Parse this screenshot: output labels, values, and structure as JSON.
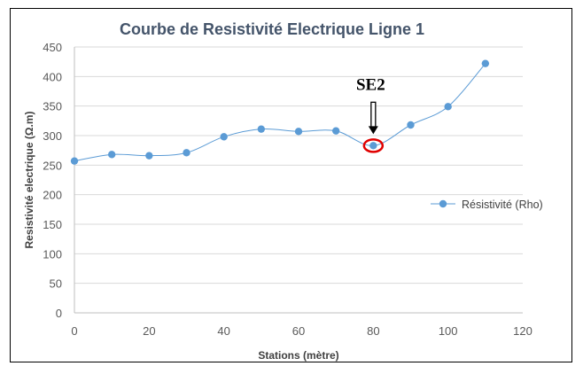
{
  "chart_data": {
    "type": "line",
    "title": "Courbe de Resistivité Electrique Ligne 1",
    "xlabel": "Stations (mètre)",
    "ylabel": "Resistivité electrique (Ω.m)",
    "xlim": [
      0,
      120
    ],
    "ylim": [
      0,
      450
    ],
    "x_ticks": [
      0,
      20,
      40,
      60,
      80,
      100,
      120
    ],
    "y_ticks": [
      0,
      50,
      100,
      150,
      200,
      250,
      300,
      350,
      400,
      450
    ],
    "grid": "horizontal",
    "legend_position": "right",
    "series": [
      {
        "name": "Résistivité (Rho)",
        "color": "#5b9bd5",
        "x": [
          0,
          10,
          20,
          30,
          40,
          50,
          60,
          70,
          80,
          90,
          100,
          110
        ],
        "y": [
          257,
          268,
          266,
          271,
          298,
          311,
          307,
          308,
          283,
          318,
          349,
          422
        ]
      }
    ],
    "annotation": {
      "text": "SE2",
      "x": 80,
      "y": 283,
      "marker": "arrow-and-ellipse",
      "color": "#e00000"
    }
  }
}
